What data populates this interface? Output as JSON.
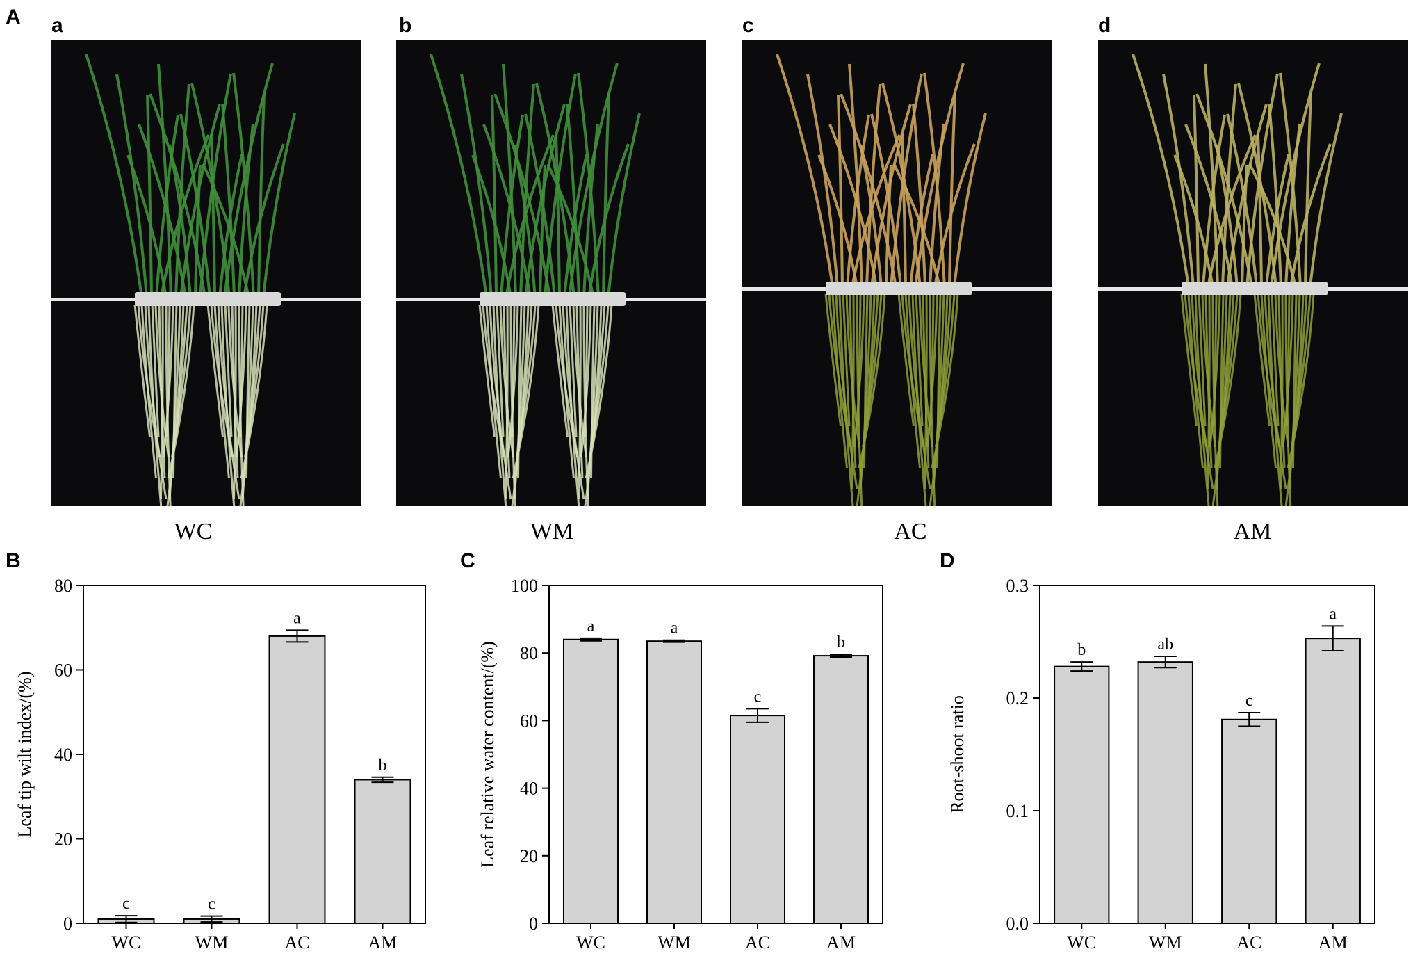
{
  "figure": {
    "panel_A_letter": "A",
    "panel_B_letter": "B",
    "panel_C_letter": "C",
    "panel_D_letter": "D"
  },
  "photos": [
    {
      "letter": "a",
      "caption": "WC",
      "shoot_color": "#3f8f3a",
      "root_color": "#d8e0b8"
    },
    {
      "letter": "b",
      "caption": "WM",
      "shoot_color": "#3f8f3a",
      "root_color": "#d8e0b8"
    },
    {
      "letter": "c",
      "caption": "AC",
      "shoot_color": "#c9a25a",
      "root_color": "#8fa038"
    },
    {
      "letter": "d",
      "caption": "AM",
      "shoot_color": "#b9b060",
      "root_color": "#8fa038"
    }
  ],
  "chart_data": [
    {
      "type": "bar",
      "panel": "B",
      "categories": [
        "WC",
        "WM",
        "AC",
        "AM"
      ],
      "values": [
        1,
        1,
        68,
        34
      ],
      "errors": [
        0.8,
        0.7,
        1.4,
        0.6
      ],
      "significance": [
        "c",
        "c",
        "a",
        "b"
      ],
      "ylabel": "Leaf  tip wilt index/(%)",
      "ylim": [
        0,
        80
      ],
      "yticks": [
        "0",
        "20",
        "40",
        "60",
        "80"
      ],
      "ytick_values": [
        0,
        20,
        40,
        60,
        80
      ],
      "bar_color": "#d3d3d3"
    },
    {
      "type": "bar",
      "panel": "C",
      "categories": [
        "WC",
        "WM",
        "AC",
        "AM"
      ],
      "values": [
        84,
        83.5,
        61.5,
        79.2
      ],
      "errors": [
        0.4,
        0.3,
        2.0,
        0.4
      ],
      "significance": [
        "a",
        "a",
        "c",
        "b"
      ],
      "ylabel": "Leaf relative water content/(%)",
      "ylim": [
        0,
        100
      ],
      "yticks": [
        "0",
        "20",
        "40",
        "60",
        "80",
        "100"
      ],
      "ytick_values": [
        0,
        20,
        40,
        60,
        80,
        100
      ],
      "bar_color": "#d3d3d3"
    },
    {
      "type": "bar",
      "panel": "D",
      "categories": [
        "WC",
        "WM",
        "AC",
        "AM"
      ],
      "values": [
        0.228,
        0.232,
        0.181,
        0.253
      ],
      "errors": [
        0.004,
        0.005,
        0.006,
        0.011
      ],
      "significance": [
        "b",
        "ab",
        "c",
        "a"
      ],
      "ylabel": "Root-shoot ratio",
      "ylim": [
        0,
        0.3
      ],
      "yticks": [
        "0.0",
        "0.1",
        "0.2",
        "0.3"
      ],
      "ytick_values": [
        0,
        0.1,
        0.2,
        0.3
      ],
      "bar_color": "#d3d3d3"
    }
  ]
}
